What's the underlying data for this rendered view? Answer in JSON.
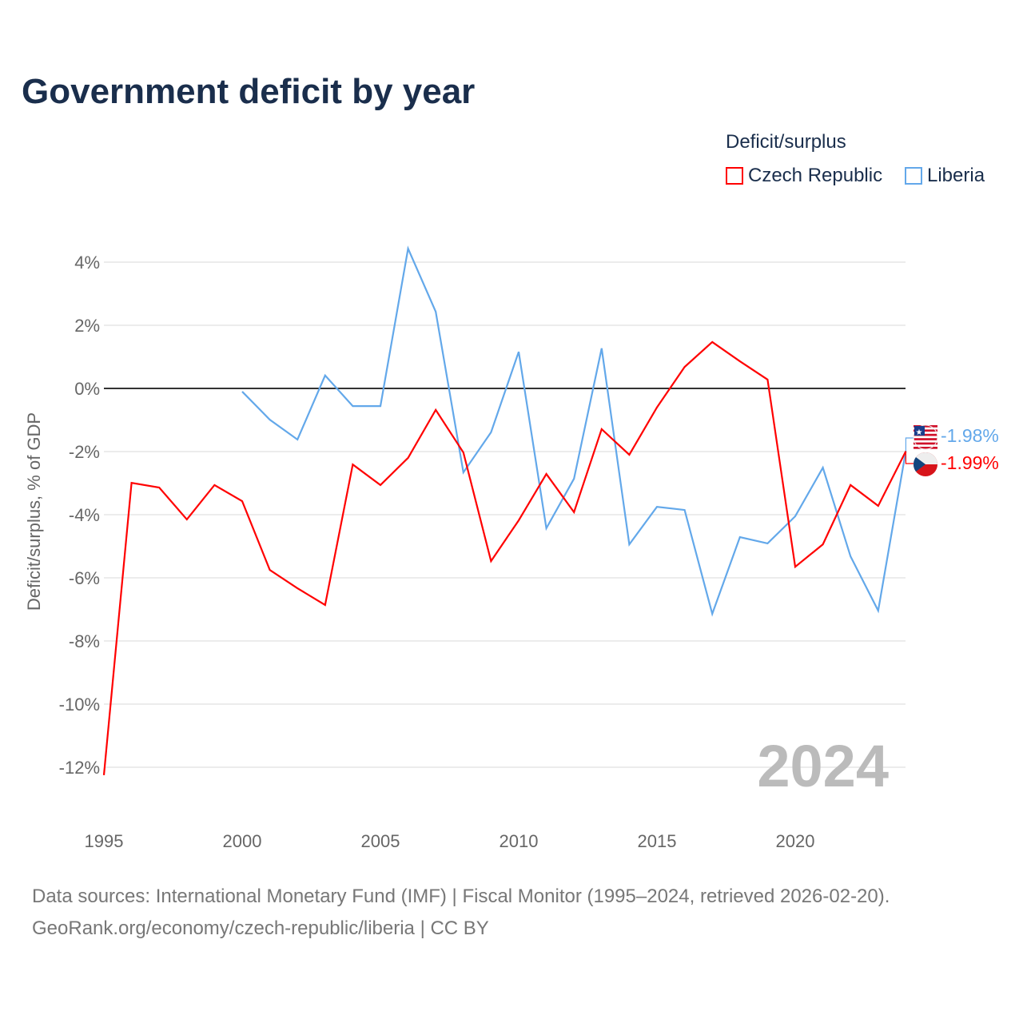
{
  "title": "Government deficit by year",
  "footer": {
    "line1": "Data sources: International Monetary Fund (IMF) | Fiscal Monitor (1995–2024, retrieved 2026-02-20).",
    "line2": "GeoRank.org/economy/czech-republic/liberia | CC BY"
  },
  "chart_data": {
    "type": "line",
    "title": "Government deficit by year",
    "ylabel": "Deficit/surplus, % of GDP",
    "xlabel": "",
    "legend_title": "Deficit/surplus",
    "legend_placement": "top-right",
    "year_watermark": "2024",
    "ylim": [
      -13,
      4.5
    ],
    "xlim": [
      1995,
      2024
    ],
    "yticks": [
      4,
      2,
      0,
      -2,
      -4,
      -6,
      -8,
      -10,
      -12
    ],
    "ytick_labels": [
      "4%",
      "2%",
      "0%",
      "-2%",
      "-4%",
      "-6%",
      "-8%",
      "-10%",
      "-12%"
    ],
    "xticks": [
      1995,
      2000,
      2005,
      2010,
      2015,
      2020
    ],
    "xtick_labels": [
      "1995",
      "2000",
      "2005",
      "2010",
      "2015",
      "2020"
    ],
    "grid": true,
    "series": [
      {
        "name": "Czech Republic",
        "color": "#ff0000",
        "end_label": "-1.99%",
        "x": [
          1995,
          1996,
          1997,
          1998,
          1999,
          2000,
          2001,
          2002,
          2003,
          2004,
          2005,
          2006,
          2007,
          2008,
          2009,
          2010,
          2011,
          2012,
          2013,
          2014,
          2015,
          2016,
          2017,
          2018,
          2019,
          2020,
          2021,
          2022,
          2023,
          2024
        ],
        "values": [
          -12.25,
          -2.99,
          -3.14,
          -4.15,
          -3.06,
          -3.57,
          -5.75,
          -6.33,
          -6.86,
          -2.41,
          -3.06,
          -2.2,
          -0.68,
          -2.03,
          -5.47,
          -4.18,
          -2.71,
          -3.92,
          -1.29,
          -2.1,
          -0.6,
          0.68,
          1.47,
          0.86,
          0.28,
          -5.65,
          -4.94,
          -3.06,
          -3.72,
          -1.99
        ]
      },
      {
        "name": "Liberia",
        "color": "#63a8ea",
        "end_label": "-1.98%",
        "x": [
          2000,
          2001,
          2002,
          2003,
          2004,
          2005,
          2006,
          2007,
          2008,
          2009,
          2010,
          2011,
          2012,
          2013,
          2014,
          2015,
          2016,
          2017,
          2018,
          2019,
          2020,
          2021,
          2022,
          2023,
          2024
        ],
        "values": [
          -0.1,
          -0.99,
          -1.62,
          0.41,
          -0.56,
          -0.56,
          4.43,
          2.43,
          -2.66,
          -1.39,
          1.16,
          -4.43,
          -2.86,
          1.27,
          -4.94,
          -3.75,
          -3.85,
          -7.14,
          -4.71,
          -4.91,
          -4.05,
          -2.51,
          -5.32,
          -7.04,
          -1.98
        ]
      }
    ]
  }
}
